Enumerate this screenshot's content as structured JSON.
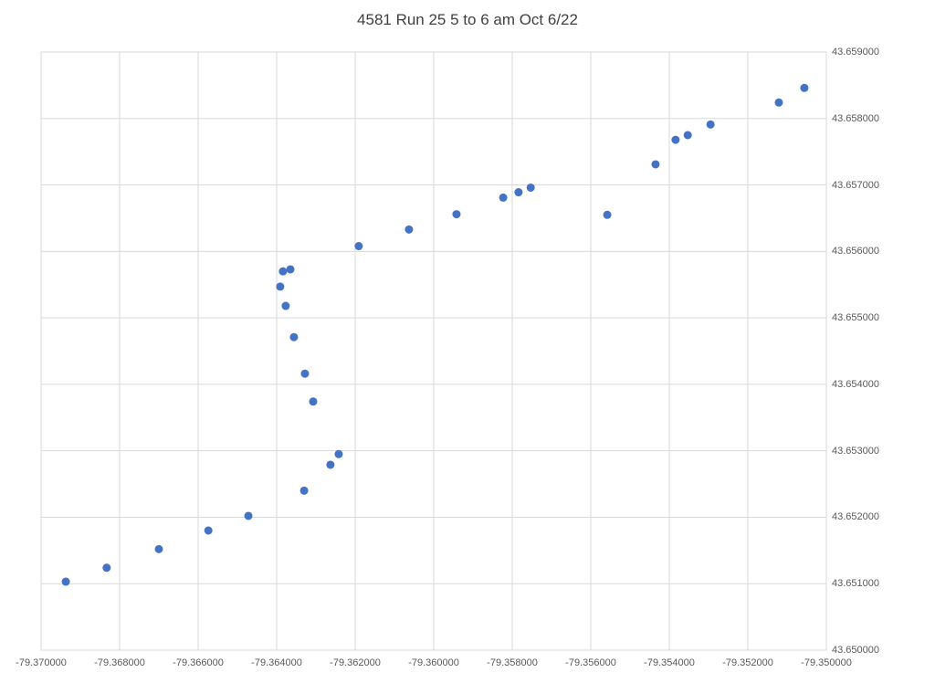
{
  "chart_data": {
    "type": "scatter",
    "title": "4581 Run 25 5 to 6 am Oct 6/22",
    "xlabel": "",
    "ylabel": "",
    "xlim": [
      -79.37,
      -79.35
    ],
    "ylim": [
      43.65,
      43.659
    ],
    "x_tick_labels": [
      "-79.370000",
      "-79.368000",
      "-79.366000",
      "-79.364000",
      "-79.362000",
      "-79.360000",
      "-79.358000",
      "-79.356000",
      "-79.354000",
      "-79.352000",
      "-79.350000"
    ],
    "y_tick_labels": [
      "43.650000",
      "43.651000",
      "43.652000",
      "43.653000",
      "43.654000",
      "43.655000",
      "43.656000",
      "43.657000",
      "43.658000",
      "43.659000"
    ],
    "y_axis_position": "right",
    "grid": true,
    "legend": false,
    "marker_color": "#4472C4",
    "grid_color": "#D9D9D9",
    "axis_text_color": "#595959",
    "title_color": "#404040",
    "points": [
      {
        "x": -79.36937,
        "y": 43.65103
      },
      {
        "x": -79.36833,
        "y": 43.65124
      },
      {
        "x": -79.367,
        "y": 43.65152
      },
      {
        "x": -79.36574,
        "y": 43.6518
      },
      {
        "x": -79.36472,
        "y": 43.65202
      },
      {
        "x": -79.3633,
        "y": 43.6524
      },
      {
        "x": -79.36263,
        "y": 43.65279
      },
      {
        "x": -79.36242,
        "y": 43.65295
      },
      {
        "x": -79.36307,
        "y": 43.65374
      },
      {
        "x": -79.36328,
        "y": 43.65416
      },
      {
        "x": -79.36356,
        "y": 43.65471
      },
      {
        "x": -79.36377,
        "y": 43.65518
      },
      {
        "x": -79.36391,
        "y": 43.65547
      },
      {
        "x": -79.36384,
        "y": 43.6557
      },
      {
        "x": -79.36365,
        "y": 43.65573
      },
      {
        "x": -79.36191,
        "y": 43.65608
      },
      {
        "x": -79.36063,
        "y": 43.65633
      },
      {
        "x": -79.35942,
        "y": 43.65656
      },
      {
        "x": -79.35823,
        "y": 43.65681
      },
      {
        "x": -79.35784,
        "y": 43.65689
      },
      {
        "x": -79.35753,
        "y": 43.65696
      },
      {
        "x": -79.35558,
        "y": 43.65655
      },
      {
        "x": -79.35435,
        "y": 43.65731
      },
      {
        "x": -79.35384,
        "y": 43.65768
      },
      {
        "x": -79.35353,
        "y": 43.65775
      },
      {
        "x": -79.35295,
        "y": 43.65791
      },
      {
        "x": -79.35121,
        "y": 43.65824
      },
      {
        "x": -79.35056,
        "y": 43.65846
      }
    ]
  }
}
